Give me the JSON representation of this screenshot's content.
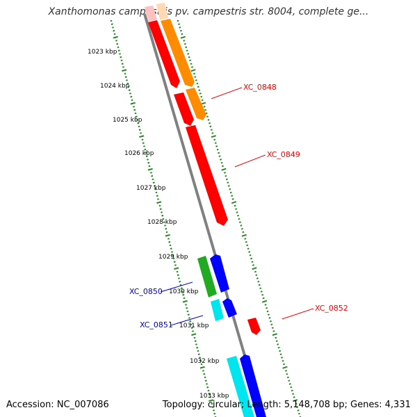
{
  "header": {
    "title": "Xanthomonas campestris pv. campestris str. 8004, complete ge..."
  },
  "footer": {
    "accession": "Accession: NC_007086",
    "summary": "Topology: circular; Length: 5,148,708 bp; Genes: 4,331"
  },
  "map": {
    "ticks": [
      "1023 kbp",
      "1024 kbp",
      "1025 kbp",
      "1026 kbp",
      "1027 kbp",
      "1028 kbp",
      "1029 kbp",
      "1030 kbp",
      "1031 kbp",
      "1032 kbp",
      "1033 kbp"
    ],
    "gene_labels": [
      {
        "id": "XC_0848",
        "color": "#ff0000"
      },
      {
        "id": "XC_0849",
        "color": "#ff0000"
      },
      {
        "id": "XC_0850",
        "color": "#0000cc"
      },
      {
        "id": "XC_0851",
        "color": "#0000cc"
      },
      {
        "id": "XC_0852",
        "color": "#ff0000"
      }
    ],
    "colors": {
      "backbone": "#808080",
      "tick_green": "#228B22",
      "forward_cds": "#ff0000",
      "forward_orf": "#ff8c00",
      "reverse_cds": "#0000ff",
      "reverse_green": "#22aa22",
      "reverse_cyan": "#00e5ee"
    }
  }
}
